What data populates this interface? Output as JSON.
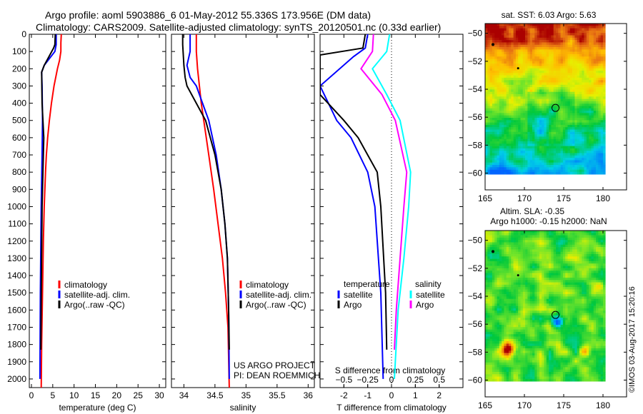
{
  "title_line1": "Argo profile: aoml 5903886_6 01-May-2012 55.336S 173.956E (DM data)",
  "title_line2": "Climatology: CARS2009. Satellite-adjusted climatology: synTS_20120501.nc (0.33d earlier)",
  "credit": "©IMOS 03-Aug-2017 15:20:16",
  "project_line1": "US ARGO PROJECT",
  "project_line2": "PI: DEAN ROEMMICH",
  "colors": {
    "climatology": "#ff0000",
    "satellite": "#0000ff",
    "argo": "#000000",
    "sal_satellite": "#00ffff",
    "sal_argo": "#ff00ff"
  },
  "chart_data": [
    {
      "type": "line",
      "xlabel": "temperature (deg C)",
      "xlim": [
        -0.5,
        31.5
      ],
      "ylim": [
        0,
        2050
      ],
      "xticks": [
        0,
        5,
        10,
        15,
        20,
        25,
        30
      ],
      "yticks": [
        0,
        100,
        200,
        300,
        400,
        500,
        600,
        700,
        800,
        900,
        1000,
        1100,
        1200,
        1300,
        1400,
        1500,
        1600,
        1700,
        1800,
        1900,
        2000
      ],
      "legend": [
        "climatology",
        "satellite-adj. clim.",
        "Argo(..raw -QC)"
      ],
      "series": [
        {
          "name": "climatology",
          "color": "#ff0000",
          "points": [
            [
              0,
              7
            ],
            [
              50,
              6.9
            ],
            [
              100,
              6.9
            ],
            [
              150,
              6.6
            ],
            [
              200,
              6.1
            ],
            [
              300,
              5.3
            ],
            [
              400,
              4.7
            ],
            [
              500,
              4.2
            ],
            [
              600,
              3.8
            ],
            [
              700,
              3.5
            ],
            [
              800,
              3.3
            ],
            [
              1000,
              3.0
            ],
            [
              1200,
              2.8
            ],
            [
              1500,
              2.6
            ],
            [
              1800,
              2.4
            ],
            [
              2050,
              2.3
            ]
          ]
        },
        {
          "name": "satellite-adj. clim.",
          "color": "#0000ff",
          "points": [
            [
              0,
              5.8
            ],
            [
              60,
              5.8
            ],
            [
              100,
              5.5
            ],
            [
              180,
              3.0
            ],
            [
              220,
              2.4
            ],
            [
              300,
              2.5
            ],
            [
              500,
              2.6
            ],
            [
              700,
              2.5
            ],
            [
              1000,
              2.3
            ],
            [
              1500,
              2.1
            ],
            [
              2000,
              2.0
            ]
          ]
        },
        {
          "name": "Argo(..raw -QC)",
          "color": "#000000",
          "points": [
            [
              0,
              5.6
            ],
            [
              60,
              5.5
            ],
            [
              80,
              5.2
            ],
            [
              180,
              3.0
            ],
            [
              220,
              2.4
            ],
            [
              400,
              2.5
            ],
            [
              600,
              2.9
            ],
            [
              800,
              2.7
            ],
            [
              1000,
              2.5
            ],
            [
              1500,
              2.3
            ],
            [
              1830,
              2.2
            ]
          ]
        }
      ]
    },
    {
      "type": "line",
      "xlabel": "salinity",
      "xlim": [
        33.8,
        36.1
      ],
      "ylim": [
        0,
        2050
      ],
      "xticks": [
        34,
        34.5,
        35,
        35.5,
        36
      ],
      "legend": [
        "climatology",
        "satellite-adj. clim.",
        "Argo(..raw -QC)"
      ],
      "series": [
        {
          "name": "climatology",
          "color": "#ff0000",
          "points": [
            [
              0,
              34.2
            ],
            [
              100,
              34.2
            ],
            [
              200,
              34.22
            ],
            [
              300,
              34.25
            ],
            [
              400,
              34.28
            ],
            [
              500,
              34.32
            ],
            [
              700,
              34.4
            ],
            [
              900,
              34.48
            ],
            [
              1100,
              34.55
            ],
            [
              1300,
              34.62
            ],
            [
              1500,
              34.67
            ],
            [
              1700,
              34.71
            ],
            [
              2050,
              34.73
            ]
          ]
        },
        {
          "name": "satellite-adj. clim.",
          "color": "#0000ff",
          "points": [
            [
              0,
              34.1
            ],
            [
              60,
              34.1
            ],
            [
              100,
              34.1
            ],
            [
              180,
              34.05
            ],
            [
              250,
              34.1
            ],
            [
              300,
              34.2
            ],
            [
              400,
              34.3
            ],
            [
              500,
              34.4
            ],
            [
              700,
              34.52
            ],
            [
              900,
              34.6
            ],
            [
              1100,
              34.66
            ],
            [
              1300,
              34.7
            ],
            [
              1600,
              34.72
            ],
            [
              2000,
              34.73
            ]
          ]
        },
        {
          "name": "Argo(..raw -QC)",
          "color": "#000000",
          "points": [
            [
              0,
              33.98
            ],
            [
              60,
              33.98
            ],
            [
              180,
              34.0
            ],
            [
              250,
              34.02
            ],
            [
              300,
              34.05
            ],
            [
              400,
              34.2
            ],
            [
              500,
              34.35
            ],
            [
              700,
              34.5
            ],
            [
              900,
              34.6
            ],
            [
              1100,
              34.66
            ],
            [
              1300,
              34.7
            ],
            [
              1600,
              34.72
            ],
            [
              1830,
              34.73
            ]
          ]
        }
      ]
    },
    {
      "type": "line",
      "xlabel": "T difference from climatology",
      "x2label": "S difference from climatology",
      "xlim": [
        -3,
        3
      ],
      "x2lim": [
        -0.75,
        0.75
      ],
      "ylim": [
        0,
        2050
      ],
      "xticks": [
        -2,
        -1,
        0,
        1,
        2
      ],
      "x2ticks": [
        -0.5,
        -0.25,
        0,
        0.25,
        0.5
      ],
      "legend_t_title": "temperature",
      "legend_s_title": "salinity",
      "legend_t": [
        "satellite",
        "Argo"
      ],
      "legend_s": [
        "satellite",
        "Argo"
      ],
      "series": [
        {
          "name": "T satellite",
          "axis": "T",
          "color": "#0000ff",
          "points": [
            [
              0,
              -1.0
            ],
            [
              80,
              -1.1
            ],
            [
              130,
              -1.6
            ],
            [
              300,
              -3.0
            ],
            [
              500,
              -2.3
            ],
            [
              600,
              -1.7
            ],
            [
              800,
              -1.0
            ],
            [
              1000,
              -0.7
            ],
            [
              1500,
              -0.45
            ],
            [
              2000,
              -0.35
            ]
          ]
        },
        {
          "name": "T Argo",
          "axis": "T",
          "color": "#000000",
          "points": [
            [
              0,
              -1.1
            ],
            [
              80,
              -1.2
            ],
            [
              120,
              -3.0
            ],
            [
              350,
              -3.0
            ],
            [
              500,
              -2.0
            ],
            [
              600,
              -1.4
            ],
            [
              800,
              -0.6
            ],
            [
              1000,
              -0.45
            ],
            [
              1500,
              -0.25
            ],
            [
              1830,
              -0.2
            ]
          ]
        },
        {
          "name": "S satellite",
          "axis": "S",
          "color": "#00ffff",
          "points": [
            [
              0,
              -0.02
            ],
            [
              100,
              -0.05
            ],
            [
              200,
              -0.2
            ],
            [
              350,
              -0.05
            ],
            [
              500,
              0.09
            ],
            [
              800,
              0.2
            ],
            [
              1000,
              0.18
            ],
            [
              1300,
              0.13
            ],
            [
              1600,
              0.07
            ],
            [
              2000,
              0.03
            ]
          ]
        },
        {
          "name": "S Argo",
          "axis": "S",
          "color": "#ff00ff",
          "points": [
            [
              0,
              -0.19
            ],
            [
              100,
              -0.2
            ],
            [
              200,
              -0.32
            ],
            [
              350,
              -0.1
            ],
            [
              500,
              0.04
            ],
            [
              800,
              0.16
            ],
            [
              1000,
              0.13
            ],
            [
              1300,
              0.09
            ],
            [
              1600,
              0.05
            ],
            [
              1830,
              0.03
            ]
          ]
        }
      ]
    },
    {
      "type": "heatmap",
      "title": "sat. SST: 6.03 Argo: 5.63",
      "xticks": [
        165,
        170,
        175,
        180
      ],
      "yticks": [
        -50,
        -52,
        -54,
        -56,
        -58,
        -60
      ],
      "xlim": [
        165,
        183
      ],
      "ylim": [
        -61.2,
        -49.3
      ],
      "profile_location": [
        173.956,
        -55.336
      ]
    },
    {
      "type": "heatmap",
      "title_line1": "Altim. SLA: -0.35",
      "title_line2": "Argo h1000: -0.15 h2000: NaN",
      "xticks": [
        165,
        170,
        175,
        180
      ],
      "yticks": [
        -50,
        -52,
        -54,
        -56,
        -58,
        -60
      ],
      "xlim": [
        165,
        183
      ],
      "ylim": [
        -61.2,
        -49.3
      ],
      "profile_location": [
        173.956,
        -55.336
      ]
    }
  ]
}
